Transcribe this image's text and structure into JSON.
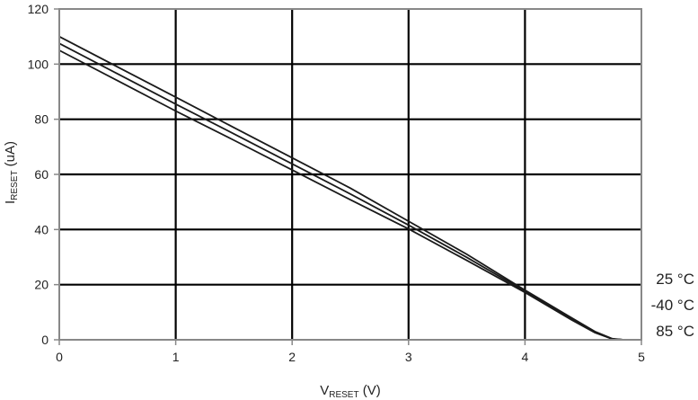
{
  "chart_data": {
    "type": "line",
    "title": "",
    "xlabel": {
      "main": "V",
      "sub": "RESET",
      "unit": " (V)"
    },
    "ylabel": {
      "main": "I",
      "sub": "RESET",
      "unit": " (uA)"
    },
    "xlim": [
      0,
      5
    ],
    "ylim": [
      0,
      120
    ],
    "x_ticks": [
      "0",
      "1",
      "2",
      "3",
      "4",
      "5"
    ],
    "y_ticks": [
      "0",
      "20",
      "40",
      "60",
      "80",
      "100",
      "120"
    ],
    "grid": true,
    "legend_position": "right",
    "colors": {
      "line": "#1a1a1a",
      "grid": "#000000",
      "frame": "#888888"
    },
    "series": [
      {
        "name": "25 °C",
        "points": [
          [
            0,
            110
          ],
          [
            0.5,
            99
          ],
          [
            1,
            88
          ],
          [
            1.5,
            77
          ],
          [
            2,
            66
          ],
          [
            2.5,
            55
          ],
          [
            3,
            43
          ],
          [
            3.5,
            31
          ],
          [
            4,
            18
          ],
          [
            4.4,
            8
          ],
          [
            4.6,
            3
          ],
          [
            4.75,
            0.4
          ],
          [
            4.85,
            0
          ]
        ]
      },
      {
        "name": "-40 °C",
        "points": [
          [
            0,
            107.5
          ],
          [
            0.5,
            96.5
          ],
          [
            1,
            85.5
          ],
          [
            1.5,
            74.7
          ],
          [
            2,
            63.8
          ],
          [
            2.5,
            52.9
          ],
          [
            3,
            41.6
          ],
          [
            3.5,
            29.9
          ],
          [
            4,
            17.6
          ],
          [
            4.4,
            7.6
          ],
          [
            4.6,
            2.8
          ],
          [
            4.75,
            0.3
          ],
          [
            4.85,
            0
          ]
        ]
      },
      {
        "name": "85 °C",
        "points": [
          [
            0,
            105
          ],
          [
            0.5,
            94
          ],
          [
            1,
            83
          ],
          [
            1.5,
            72.4
          ],
          [
            2,
            61.6
          ],
          [
            2.5,
            50.8
          ],
          [
            3,
            40.2
          ],
          [
            3.5,
            28.8
          ],
          [
            4,
            17.2
          ],
          [
            4.4,
            7.2
          ],
          [
            4.6,
            2.6
          ],
          [
            4.75,
            0.3
          ],
          [
            4.85,
            0
          ]
        ]
      }
    ]
  }
}
